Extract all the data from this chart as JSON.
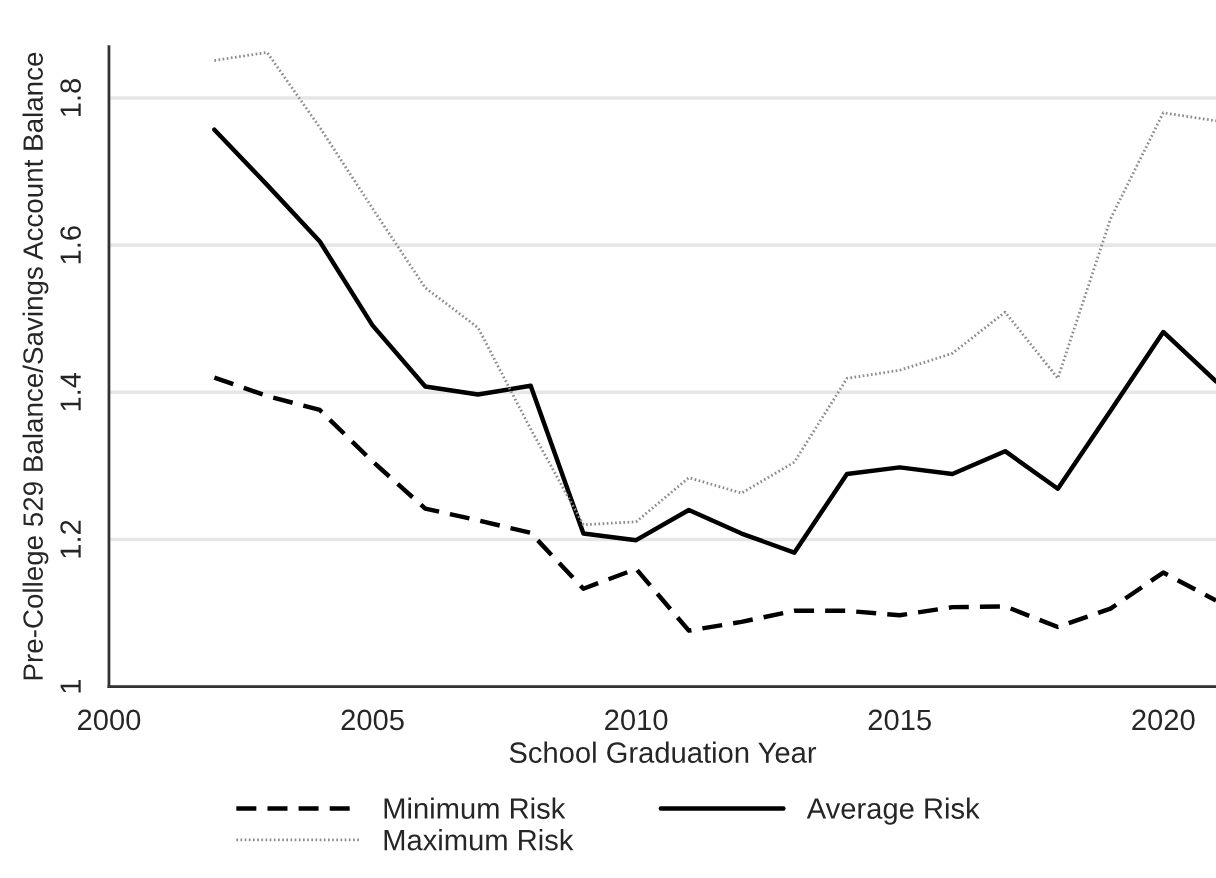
{
  "chart_data": {
    "type": "line",
    "xlabel": "School Graduation Year",
    "ylabel": "Pre-College 529 Balance/Savings Account Balance",
    "x": [
      2002,
      2003,
      2004,
      2005,
      2006,
      2007,
      2008,
      2009,
      2010,
      2011,
      2012,
      2013,
      2014,
      2015,
      2016,
      2017,
      2018,
      2019,
      2020,
      2021
    ],
    "series": [
      {
        "name": "Minimum Risk",
        "color": "#000000",
        "line_style": "dashed",
        "values": [
          1.42,
          1.395,
          1.376,
          1.306,
          1.242,
          1.226,
          1.209,
          1.133,
          1.16,
          1.076,
          1.088,
          1.103,
          1.103,
          1.097,
          1.108,
          1.109,
          1.081,
          1.106,
          1.155,
          1.117
        ]
      },
      {
        "name": "Average Risk",
        "color": "#000000",
        "line_style": "solid",
        "values": [
          1.757,
          1.682,
          1.605,
          1.491,
          1.408,
          1.397,
          1.409,
          1.208,
          1.199,
          1.24,
          1.208,
          1.182,
          1.289,
          1.298,
          1.289,
          1.32,
          1.269,
          1.375,
          1.482,
          1.415
        ]
      },
      {
        "name": "Maximum Risk",
        "color": "#8c8c8c",
        "line_style": "dotted",
        "values": [
          1.851,
          1.862,
          1.76,
          1.65,
          1.542,
          1.488,
          1.35,
          1.22,
          1.224,
          1.284,
          1.263,
          1.305,
          1.419,
          1.43,
          1.453,
          1.509,
          1.419,
          1.636,
          1.78,
          1.769
        ]
      }
    ],
    "xlim": [
      2000,
      2021
    ],
    "ylim": [
      1,
      1.87
    ],
    "xticks": [
      2000,
      2005,
      2010,
      2015,
      2020
    ],
    "yticks": [
      1,
      1.2,
      1.4,
      1.6,
      1.8
    ],
    "grid": "y",
    "legend": "bottom",
    "marker": "none"
  }
}
